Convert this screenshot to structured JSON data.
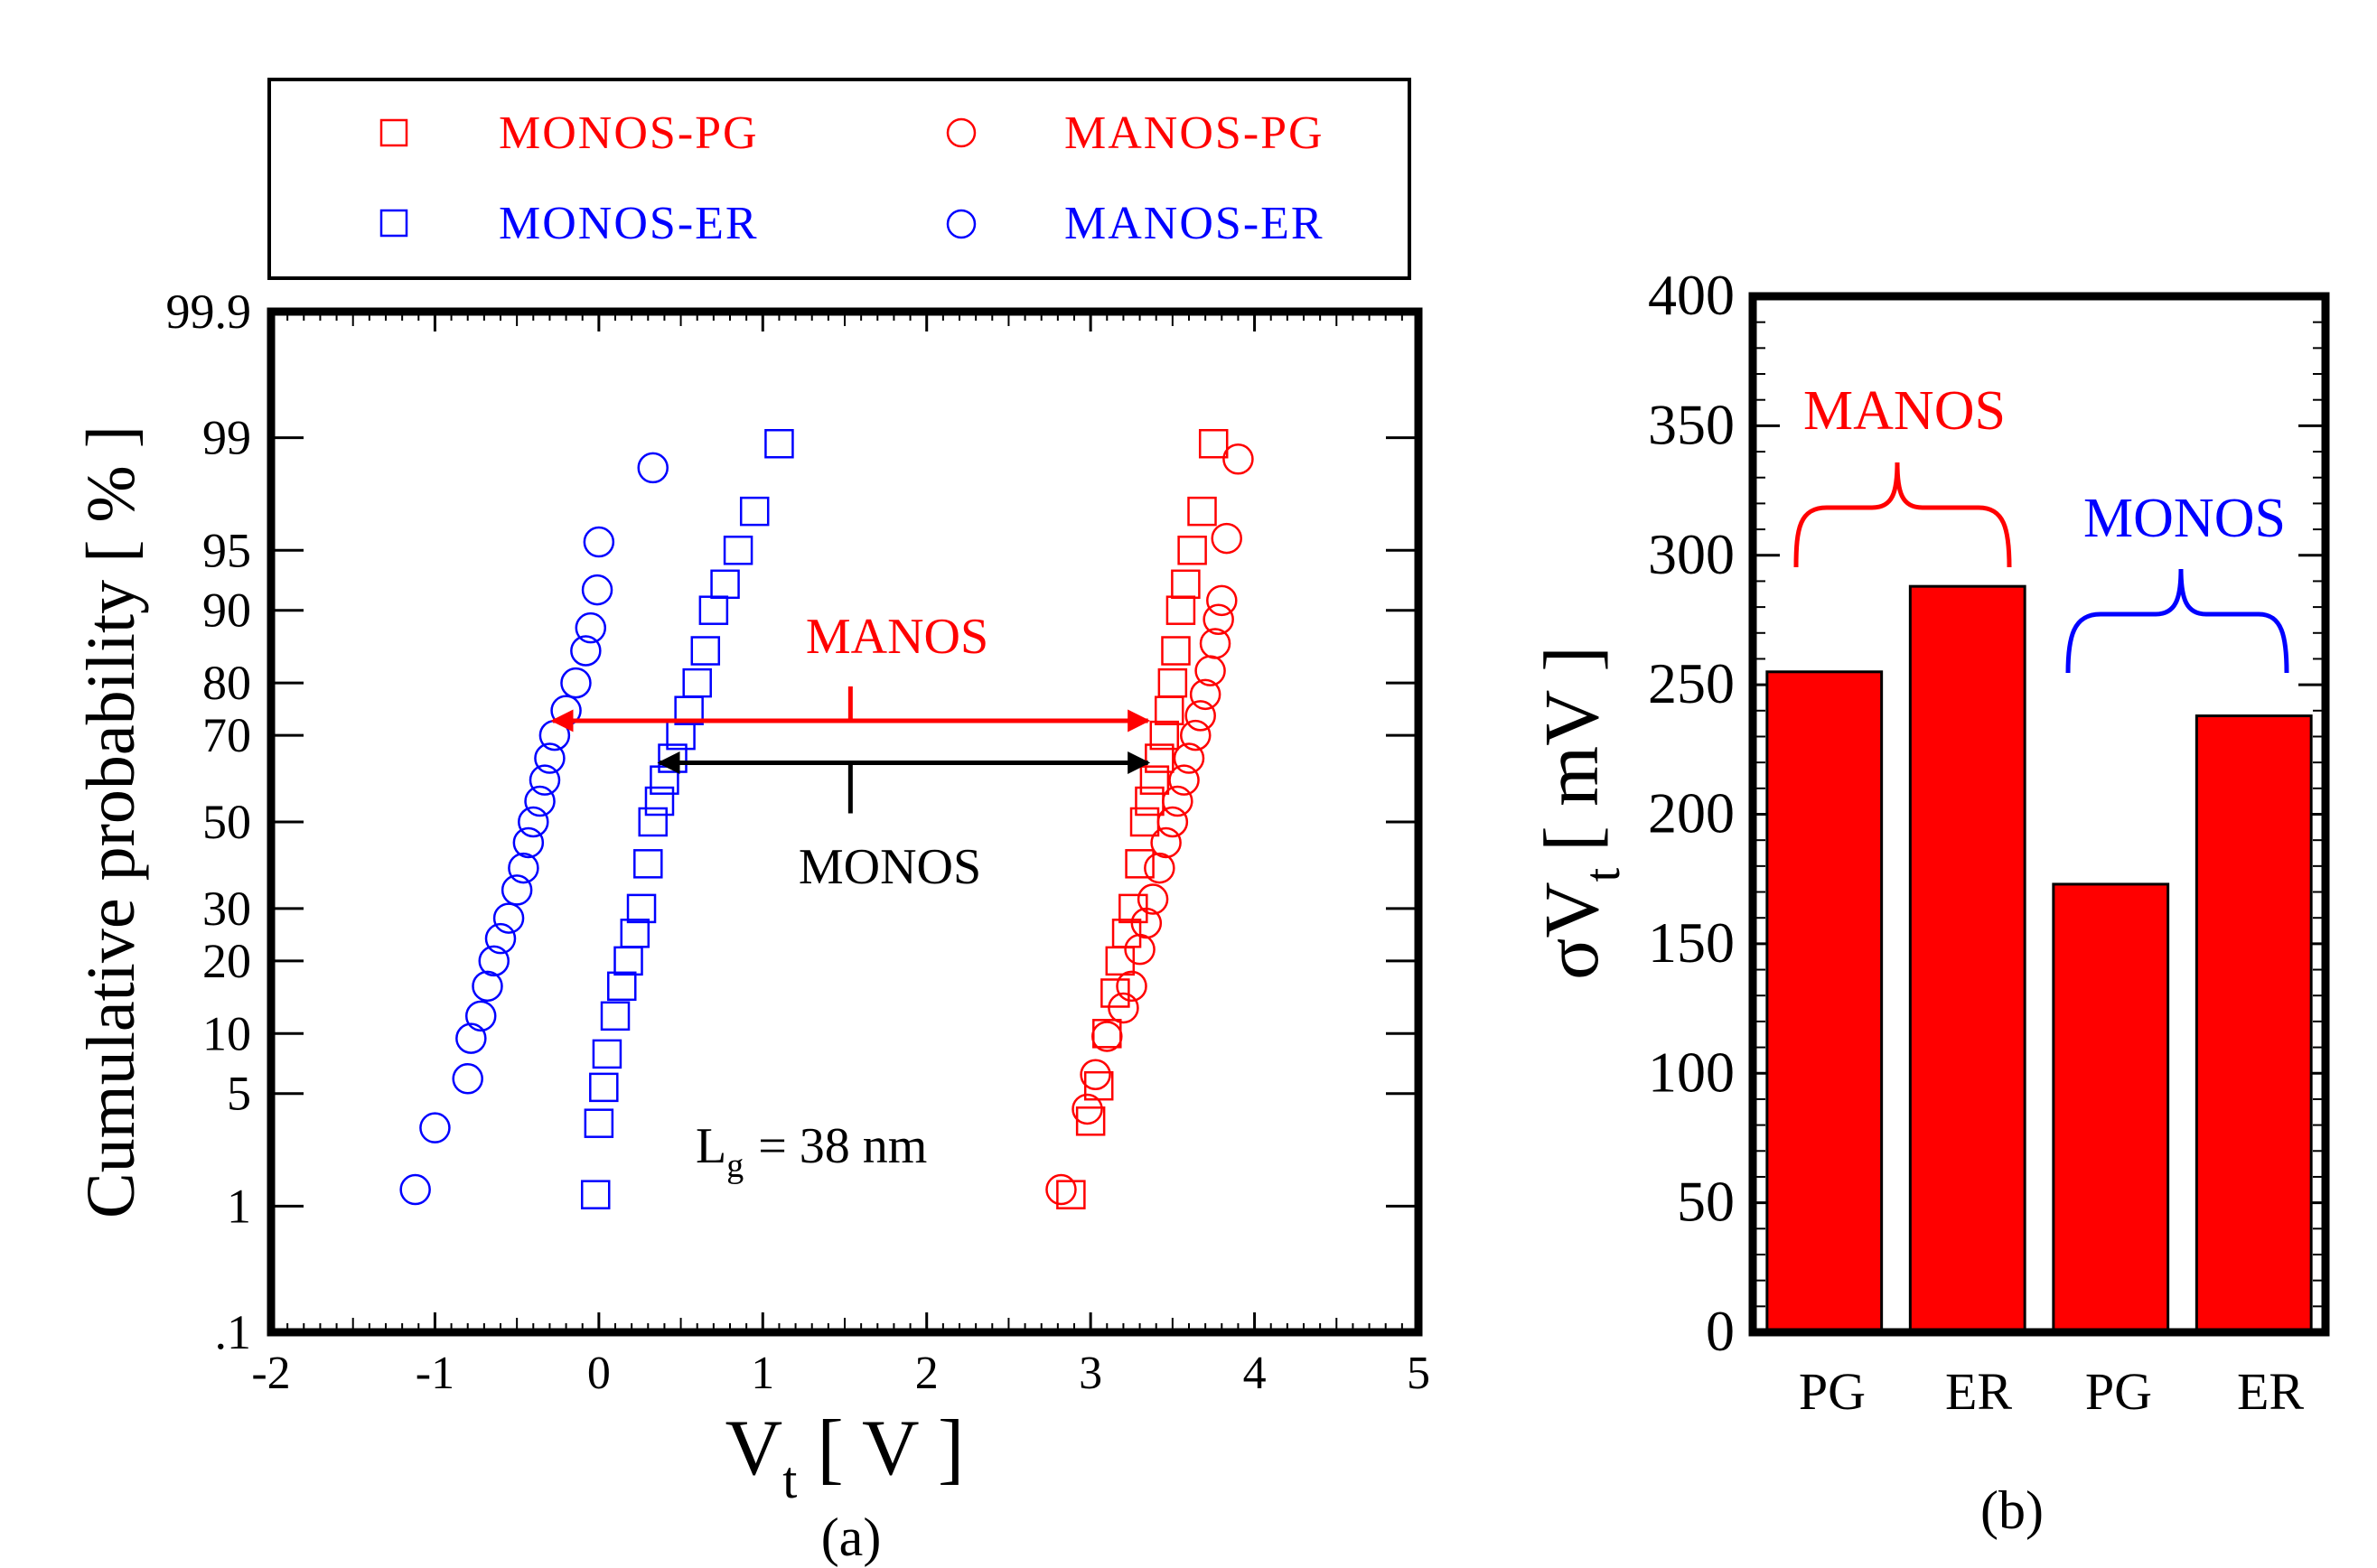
{
  "chart_data": [
    {
      "type": "scatter",
      "panel_label": "(a)",
      "xlabel_main": "V",
      "xlabel_sub": "t",
      "xlabel_unit": "[ V ]",
      "ylabel": "Cumulative probability [ % ]",
      "xlim": [
        -2,
        5
      ],
      "y_scale": "normal-probability",
      "ylim": [
        0.1,
        99.9
      ],
      "x_ticks": [
        {
          "value": -2,
          "label": "-2"
        },
        {
          "value": -1,
          "label": "-1"
        },
        {
          "value": 0,
          "label": "0"
        },
        {
          "value": 1,
          "label": "1"
        },
        {
          "value": 2,
          "label": "2"
        },
        {
          "value": 3,
          "label": "3"
        },
        {
          "value": 4,
          "label": "4"
        },
        {
          "value": 5,
          "label": "5"
        }
      ],
      "y_ticks": [
        {
          "value": 0.1,
          "label": ".1"
        },
        {
          "value": 1,
          "label": "1"
        },
        {
          "value": 5,
          "label": "5"
        },
        {
          "value": 10,
          "label": "10"
        },
        {
          "value": 20,
          "label": "20"
        },
        {
          "value": 30,
          "label": "30"
        },
        {
          "value": 50,
          "label": "50"
        },
        {
          "value": 70,
          "label": "70"
        },
        {
          "value": 80,
          "label": "80"
        },
        {
          "value": 90,
          "label": "90"
        },
        {
          "value": 95,
          "label": "95"
        },
        {
          "value": 99,
          "label": "99"
        },
        {
          "value": 99.9,
          "label": "99.9"
        }
      ],
      "legend": {
        "placement": "top",
        "entries": [
          {
            "label": "MONOS-PG",
            "marker": "square",
            "color": "#ff0000"
          },
          {
            "label": "MANOS-PG",
            "marker": "circle",
            "color": "#ff0000"
          },
          {
            "label": "MONOS-ER",
            "marker": "square",
            "color": "#0000ff"
          },
          {
            "label": "MANOS-ER",
            "marker": "circle",
            "color": "#0000ff"
          }
        ]
      },
      "series": [
        {
          "name": "MONOS-PG",
          "marker": "square",
          "color": "#ff0000",
          "points": [
            [
              2.88,
              1.2
            ],
            [
              3.0,
              3.5
            ],
            [
              3.05,
              5.5
            ],
            [
              3.1,
              10
            ],
            [
              3.15,
              15
            ],
            [
              3.18,
              20
            ],
            [
              3.22,
              25
            ],
            [
              3.26,
              30
            ],
            [
              3.3,
              40
            ],
            [
              3.33,
              50
            ],
            [
              3.36,
              55
            ],
            [
              3.39,
              60
            ],
            [
              3.42,
              65
            ],
            [
              3.45,
              70
            ],
            [
              3.48,
              75
            ],
            [
              3.5,
              80
            ],
            [
              3.52,
              85
            ],
            [
              3.55,
              90
            ],
            [
              3.58,
              92.5
            ],
            [
              3.62,
              95
            ],
            [
              3.68,
              97
            ],
            [
              3.75,
              98.9
            ]
          ]
        },
        {
          "name": "MANOS-PG",
          "marker": "circle",
          "color": "#ff0000",
          "points": [
            [
              2.82,
              1.3
            ],
            [
              2.98,
              4.1
            ],
            [
              3.03,
              6.3
            ],
            [
              3.1,
              9.7
            ],
            [
              3.2,
              13
            ],
            [
              3.25,
              16
            ],
            [
              3.3,
              22
            ],
            [
              3.34,
              27
            ],
            [
              3.38,
              32
            ],
            [
              3.42,
              39
            ],
            [
              3.46,
              45
            ],
            [
              3.5,
              50
            ],
            [
              3.53,
              55
            ],
            [
              3.57,
              60
            ],
            [
              3.6,
              65
            ],
            [
              3.64,
              70
            ],
            [
              3.67,
              74
            ],
            [
              3.7,
              78
            ],
            [
              3.73,
              82
            ],
            [
              3.76,
              86
            ],
            [
              3.78,
              89
            ],
            [
              3.8,
              91
            ],
            [
              3.83,
              95.7
            ],
            [
              3.9,
              98.6
            ]
          ]
        },
        {
          "name": "MONOS-ER",
          "marker": "square",
          "color": "#0000ff",
          "points": [
            [
              -0.02,
              1.2
            ],
            [
              0.0,
              3.4
            ],
            [
              0.03,
              5.4
            ],
            [
              0.05,
              8
            ],
            [
              0.1,
              12
            ],
            [
              0.14,
              16
            ],
            [
              0.18,
              20
            ],
            [
              0.22,
              25
            ],
            [
              0.26,
              30
            ],
            [
              0.3,
              40
            ],
            [
              0.33,
              50
            ],
            [
              0.37,
              55
            ],
            [
              0.4,
              60
            ],
            [
              0.45,
              65
            ],
            [
              0.5,
              70
            ],
            [
              0.55,
              75
            ],
            [
              0.6,
              80
            ],
            [
              0.65,
              85
            ],
            [
              0.7,
              90
            ],
            [
              0.77,
              92.5
            ],
            [
              0.85,
              95
            ],
            [
              0.95,
              97
            ],
            [
              1.1,
              98.9
            ]
          ]
        },
        {
          "name": "MANOS-ER",
          "marker": "circle",
          "color": "#0000ff",
          "points": [
            [
              -1.12,
              1.3
            ],
            [
              -1.0,
              3.2
            ],
            [
              -0.8,
              6
            ],
            [
              -0.78,
              9.5
            ],
            [
              -0.72,
              12
            ],
            [
              -0.68,
              16
            ],
            [
              -0.64,
              20
            ],
            [
              -0.6,
              24
            ],
            [
              -0.55,
              28
            ],
            [
              -0.5,
              34
            ],
            [
              -0.46,
              39
            ],
            [
              -0.43,
              45
            ],
            [
              -0.4,
              50
            ],
            [
              -0.36,
              55
            ],
            [
              -0.33,
              60
            ],
            [
              -0.3,
              65
            ],
            [
              -0.27,
              70
            ],
            [
              -0.2,
              75
            ],
            [
              -0.14,
              80
            ],
            [
              -0.08,
              85
            ],
            [
              -0.05,
              88
            ],
            [
              -0.01,
              92
            ],
            [
              0.0,
              95.5
            ],
            [
              0.33,
              98.4
            ]
          ]
        }
      ],
      "annotations": {
        "manos_label": "MANOS",
        "manos_span": [
          -0.28,
          3.35
        ],
        "manos_level": 73,
        "monos_label": "MONOS",
        "monos_span": [
          0.37,
          3.35
        ],
        "monos_level": 64,
        "gate_length_main": "L",
        "gate_length_sub": "g",
        "gate_length_rest": "= 38 nm"
      }
    },
    {
      "type": "bar",
      "panel_label": "(b)",
      "ylabel_main": "σV",
      "ylabel_sub": "t",
      "ylabel_unit": "[ mV ]",
      "ylim": [
        0,
        400
      ],
      "y_ticks": [
        0,
        50,
        100,
        150,
        200,
        250,
        300,
        350,
        400
      ],
      "y_tick_labels": [
        "0",
        "50",
        "100",
        "150",
        "200",
        "250",
        "300",
        "350",
        "400"
      ],
      "categories": [
        "PG",
        "ER",
        "PG",
        "ER"
      ],
      "values": [
        255,
        288,
        173,
        238
      ],
      "bar_color": "#ff0000",
      "groups": [
        {
          "label": "MANOS",
          "color": "#ff0000"
        },
        {
          "label": "MONOS",
          "color": "#0000ff"
        }
      ]
    }
  ]
}
